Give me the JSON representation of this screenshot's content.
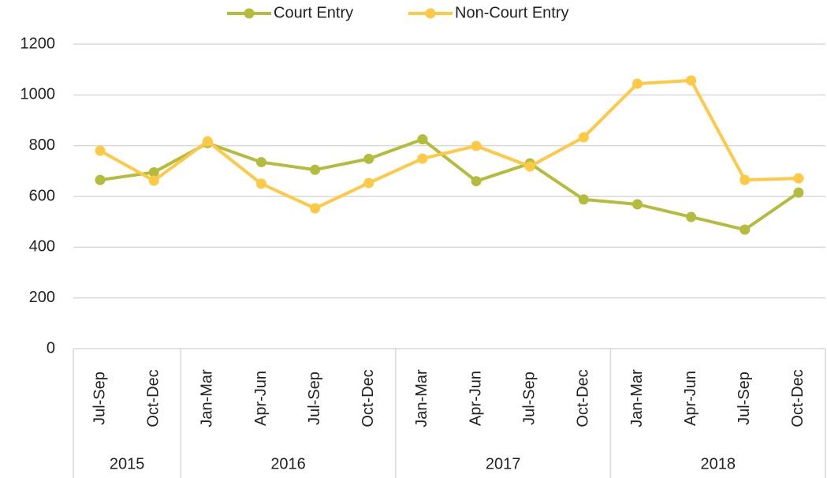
{
  "chart_data": {
    "type": "line",
    "groups": [
      {
        "label": "2015",
        "categories": [
          "Jul-Sep",
          "Oct-Dec"
        ]
      },
      {
        "label": "2016",
        "categories": [
          "Jan-Mar",
          "Apr-Jun",
          "Jul-Sep",
          "Oct-Dec"
        ]
      },
      {
        "label": "2017",
        "categories": [
          "Jan-Mar",
          "Apr-Jun",
          "Jul-Sep",
          "Oct-Dec"
        ]
      },
      {
        "label": "2018",
        "categories": [
          "Jan-Mar",
          "Apr-Jun",
          "Jul-Sep",
          "Oct-Dec"
        ]
      }
    ],
    "series": [
      {
        "name": "Court Entry",
        "color": "#b3bd3b",
        "values": [
          665,
          695,
          810,
          735,
          705,
          748,
          825,
          660,
          730,
          588,
          569,
          519,
          469,
          615
        ]
      },
      {
        "name": "Non-Court Entry",
        "color": "#ffc845",
        "values": [
          780,
          662,
          817,
          650,
          553,
          653,
          749,
          799,
          718,
          833,
          1044,
          1057,
          665,
          671
        ]
      }
    ],
    "ylim": [
      0,
      1200
    ],
    "yticks": [
      0,
      200,
      400,
      600,
      800,
      1000,
      1200
    ],
    "grid": true,
    "legend": "top"
  }
}
